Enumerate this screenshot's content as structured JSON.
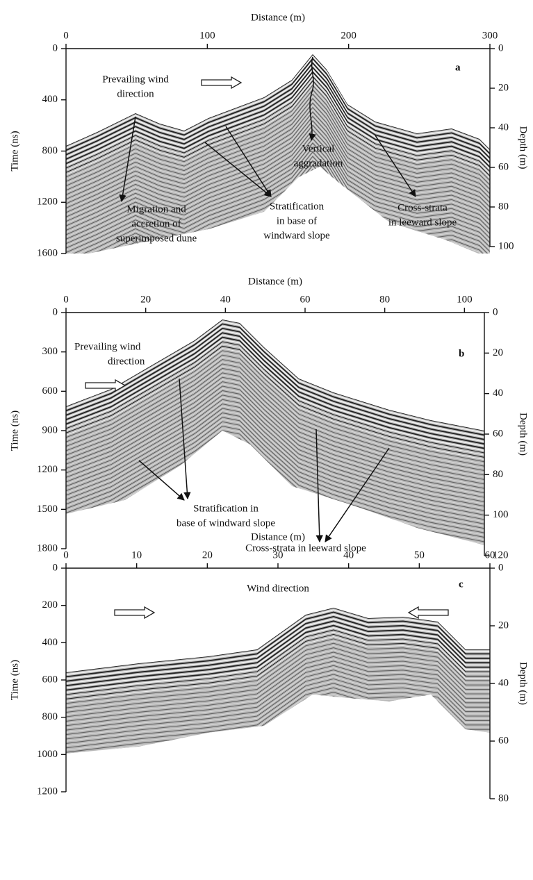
{
  "chart_data": [
    {
      "type": "radargram",
      "panel_label": "a",
      "xlabel": "Distance (m)",
      "ylabel": "Time (ns)",
      "y2label": "Depth (m)",
      "xlim": [
        0,
        300
      ],
      "xticks": [
        0,
        100,
        200,
        300
      ],
      "ylim": [
        0,
        1600
      ],
      "yticks": [
        0,
        400,
        800,
        1200,
        1600
      ],
      "y_inverted": true,
      "y2lim": [
        0,
        100
      ],
      "y2ticks": [
        0,
        20,
        40,
        60,
        80,
        100
      ],
      "annotations": [
        {
          "lines": [
            "Prevailing wind",
            "direction"
          ]
        },
        {
          "lines": [
            "Vertical",
            "aggradation"
          ]
        },
        {
          "lines": [
            "Migration and",
            "accretion of",
            "superimposed dune"
          ]
        },
        {
          "lines": [
            "Stratification",
            "in  base of",
            "windward slope"
          ]
        },
        {
          "lines": [
            "Cross-strata",
            "in leeward slope"
          ]
        }
      ]
    },
    {
      "type": "radargram",
      "panel_label": "b",
      "xlabel": "Distance (m)",
      "ylabel": "Time (ns)",
      "y2label": "Depth (m)",
      "xlim": [
        0,
        105
      ],
      "xticks": [
        0,
        20,
        40,
        60,
        80,
        100
      ],
      "ylim": [
        0,
        1800
      ],
      "yticks": [
        0,
        300,
        600,
        900,
        1200,
        1500,
        1800
      ],
      "y_inverted": true,
      "y2lim": [
        0,
        120
      ],
      "y2ticks": [
        0,
        20,
        40,
        60,
        80,
        100,
        120
      ],
      "annotations": [
        {
          "lines": [
            "Prevailing wind",
            "direction"
          ]
        },
        {
          "lines": [
            "Stratification in",
            "base of windward slope"
          ]
        },
        {
          "lines": [
            "Cross-strata in leeward slope"
          ]
        }
      ]
    },
    {
      "type": "radargram",
      "panel_label": "c",
      "xlabel": "Distance (m)",
      "ylabel": "Time (ns)",
      "y2label": "Depth (m)",
      "xlim": [
        0,
        60
      ],
      "xticks": [
        0,
        10,
        20,
        30,
        40,
        50,
        60
      ],
      "ylim": [
        0,
        1200
      ],
      "yticks": [
        0,
        200,
        400,
        600,
        800,
        1000,
        1200
      ],
      "y_inverted": true,
      "y2lim": [
        0,
        80
      ],
      "y2ticks": [
        0,
        20,
        40,
        60,
        80
      ],
      "annotations": [
        {
          "lines": [
            "Wind direction"
          ]
        }
      ]
    }
  ]
}
